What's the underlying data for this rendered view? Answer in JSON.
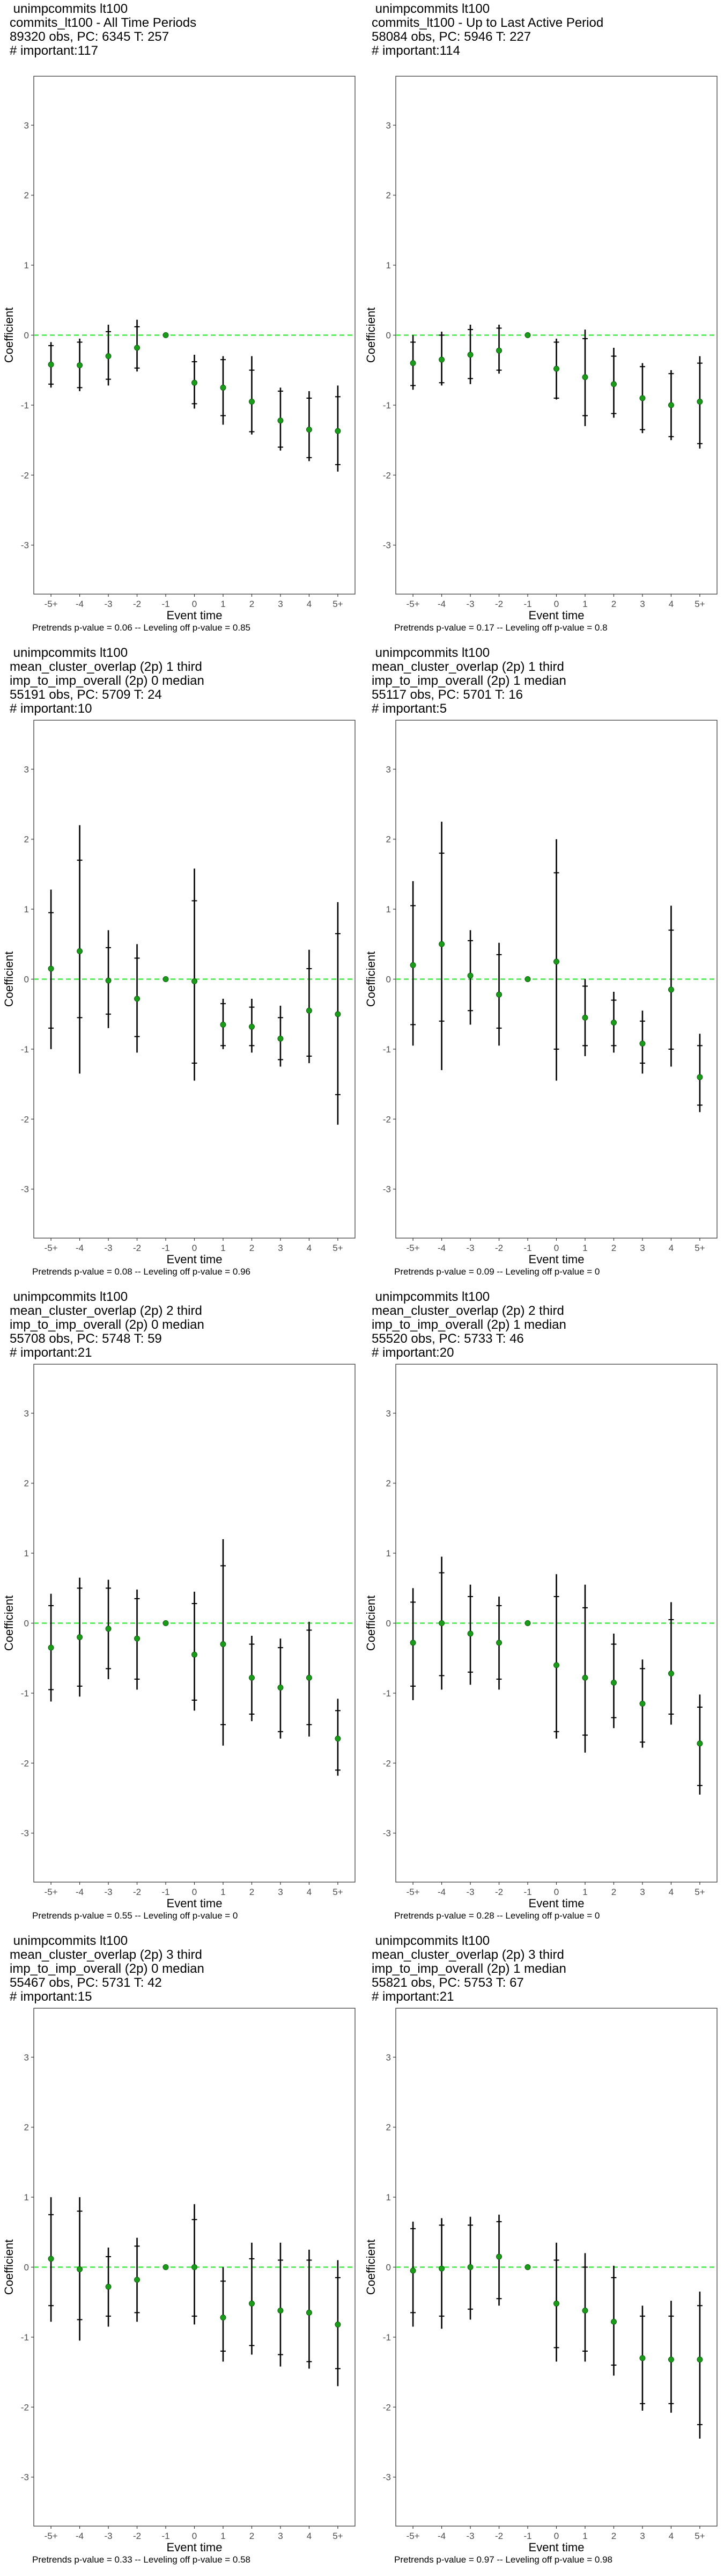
{
  "colors": {
    "estimate_point": "#1a9c1a",
    "zero_line": "#33e533",
    "error_bar": "#000000",
    "panel_border": "#333333",
    "tick_text": "#4d4d4d"
  },
  "chart_data": [
    {
      "type": "scatter",
      "title_lines": [
        " unimpcommits lt100",
        "commits_lt100 - All Time Periods",
        "89320 obs, PC: 6345 T: 257",
        "# important:117"
      ],
      "footnote": "Pretrends p-value = 0.06 -- Leveling off p-value = 0.85",
      "xlabel": "Event time",
      "ylabel": "Coefficient",
      "ylim": [
        -3.7,
        3.7
      ],
      "y_ticks": [
        -3,
        -2,
        -1,
        0,
        1,
        2,
        3
      ],
      "x": [
        "-5+",
        "-4",
        "-3",
        "-2",
        "-1",
        "0",
        "1",
        "2",
        "3",
        "4",
        "5+"
      ],
      "estimate": [
        -0.42,
        -0.43,
        -0.3,
        -0.18,
        0.0,
        -0.68,
        -0.75,
        -0.95,
        -1.22,
        -1.35,
        -1.37
      ],
      "ci_low": [
        -0.75,
        -0.8,
        -0.72,
        -0.52,
        0.0,
        -1.05,
        -1.28,
        -1.42,
        -1.65,
        -1.8,
        -1.95
      ],
      "ci_high": [
        -0.1,
        -0.05,
        0.15,
        0.22,
        0.0,
        -0.28,
        -0.3,
        -0.3,
        -0.75,
        -0.8,
        -0.72
      ],
      "inner_low": [
        -0.7,
        -0.75,
        -0.63,
        -0.47,
        0.0,
        -0.98,
        -1.15,
        -1.38,
        -1.6,
        -1.75,
        -1.85
      ],
      "inner_high": [
        -0.15,
        -0.1,
        0.05,
        0.12,
        0.0,
        -0.38,
        -0.35,
        -0.5,
        -0.8,
        -0.9,
        -0.88
      ],
      "legend": "none",
      "grid": false
    },
    {
      "type": "scatter",
      "title_lines": [
        " unimpcommits lt100",
        "commits_lt100 - Up to Last Active Period",
        "58084 obs, PC: 5946 T: 227",
        "# important:114"
      ],
      "footnote": "Pretrends p-value = 0.17 -- Leveling off p-value = 0.8",
      "xlabel": "Event time",
      "ylabel": "Coefficient",
      "ylim": [
        -3.7,
        3.7
      ],
      "y_ticks": [
        -3,
        -2,
        -1,
        0,
        1,
        2,
        3
      ],
      "x": [
        "-5+",
        "-4",
        "-3",
        "-2",
        "-1",
        "0",
        "1",
        "2",
        "3",
        "4",
        "5+"
      ],
      "estimate": [
        -0.4,
        -0.35,
        -0.28,
        -0.22,
        0.0,
        -0.48,
        -0.6,
        -0.7,
        -0.9,
        -1.0,
        -0.95
      ],
      "ci_low": [
        -0.78,
        -0.72,
        -0.7,
        -0.55,
        0.0,
        -0.92,
        -1.3,
        -1.18,
        -1.4,
        -1.5,
        -1.62
      ],
      "ci_high": [
        0.0,
        0.05,
        0.15,
        0.15,
        0.0,
        -0.05,
        0.08,
        -0.18,
        -0.4,
        -0.5,
        -0.3
      ],
      "inner_low": [
        -0.72,
        -0.68,
        -0.62,
        -0.5,
        0.0,
        -0.9,
        -1.15,
        -1.12,
        -1.35,
        -1.45,
        -1.55
      ],
      "inner_high": [
        -0.1,
        0.0,
        0.08,
        0.1,
        0.0,
        -0.1,
        -0.05,
        -0.3,
        -0.45,
        -0.55,
        -0.4
      ],
      "legend": "none",
      "grid": false
    },
    {
      "type": "scatter",
      "title_lines": [
        " unimpcommits lt100",
        "mean_cluster_overlap (2p) 1 third",
        "imp_to_imp_overall (2p) 0 median",
        "55191 obs, PC: 5709 T: 24",
        "# important:10"
      ],
      "footnote": "Pretrends p-value = 0.08 -- Leveling off p-value = 0.96",
      "xlabel": "Event time",
      "ylabel": "Coefficient",
      "ylim": [
        -3.7,
        3.7
      ],
      "y_ticks": [
        -3,
        -2,
        -1,
        0,
        1,
        2,
        3
      ],
      "x": [
        "-5+",
        "-4",
        "-3",
        "-2",
        "-1",
        "0",
        "1",
        "2",
        "3",
        "4",
        "5+"
      ],
      "estimate": [
        0.15,
        0.4,
        -0.02,
        -0.28,
        0.0,
        -0.03,
        -0.65,
        -0.68,
        -0.85,
        -0.45,
        -0.5
      ],
      "ci_low": [
        -1.0,
        -1.35,
        -0.7,
        -1.05,
        0.0,
        -1.45,
        -1.0,
        -1.05,
        -1.25,
        -1.2,
        -2.08
      ],
      "ci_high": [
        1.28,
        2.2,
        0.7,
        0.5,
        0.0,
        1.58,
        -0.28,
        -0.28,
        -0.38,
        0.42,
        1.1
      ],
      "inner_low": [
        -0.7,
        -0.55,
        -0.5,
        -0.82,
        0.0,
        -1.2,
        -0.95,
        -0.95,
        -1.15,
        -1.1,
        -1.65
      ],
      "inner_high": [
        0.95,
        1.7,
        0.45,
        0.3,
        0.0,
        1.12,
        -0.35,
        -0.4,
        -0.55,
        0.15,
        0.65
      ],
      "legend": "none",
      "grid": false
    },
    {
      "type": "scatter",
      "title_lines": [
        " unimpcommits lt100",
        "mean_cluster_overlap (2p) 1 third",
        "imp_to_imp_overall (2p) 1 median",
        "55117 obs, PC: 5701 T: 16",
        "# important:5"
      ],
      "footnote": "Pretrends p-value = 0.09 -- Leveling off p-value = 0",
      "xlabel": "Event time",
      "ylabel": "Coefficient",
      "ylim": [
        -3.7,
        3.7
      ],
      "y_ticks": [
        -3,
        -2,
        -1,
        0,
        1,
        2,
        3
      ],
      "x": [
        "-5+",
        "-4",
        "-3",
        "-2",
        "-1",
        "0",
        "1",
        "2",
        "3",
        "4",
        "5+"
      ],
      "estimate": [
        0.2,
        0.5,
        0.05,
        -0.22,
        0.0,
        0.25,
        -0.55,
        -0.62,
        -0.92,
        -0.15,
        -1.4
      ],
      "ci_low": [
        -0.95,
        -1.3,
        -0.65,
        -0.95,
        0.0,
        -1.45,
        -1.1,
        -1.05,
        -1.35,
        -1.25,
        -1.9
      ],
      "ci_high": [
        1.4,
        2.25,
        0.7,
        0.52,
        0.0,
        2.0,
        0.0,
        -0.18,
        -0.45,
        1.05,
        -0.78
      ],
      "inner_low": [
        -0.65,
        -0.6,
        -0.45,
        -0.7,
        0.0,
        -1.0,
        -0.95,
        -0.95,
        -1.2,
        -1.0,
        -1.8
      ],
      "inner_high": [
        1.05,
        1.8,
        0.55,
        0.35,
        0.0,
        1.52,
        -0.1,
        -0.3,
        -0.6,
        0.7,
        -0.95
      ],
      "legend": "none",
      "grid": false
    },
    {
      "type": "scatter",
      "title_lines": [
        " unimpcommits lt100",
        "mean_cluster_overlap (2p) 2 third",
        "imp_to_imp_overall (2p) 0 median",
        "55708 obs, PC: 5748 T: 59",
        "# important:21"
      ],
      "footnote": "Pretrends p-value = 0.55 -- Leveling off p-value = 0",
      "xlabel": "Event time",
      "ylabel": "Coefficient",
      "ylim": [
        -3.7,
        3.7
      ],
      "y_ticks": [
        -3,
        -2,
        -1,
        0,
        1,
        2,
        3
      ],
      "x": [
        "-5+",
        "-4",
        "-3",
        "-2",
        "-1",
        "0",
        "1",
        "2",
        "3",
        "4",
        "5+"
      ],
      "estimate": [
        -0.35,
        -0.2,
        -0.08,
        -0.22,
        0.0,
        -0.45,
        -0.3,
        -0.78,
        -0.92,
        -0.78,
        -1.65
      ],
      "ci_low": [
        -1.12,
        -1.05,
        -0.8,
        -0.95,
        0.0,
        -1.25,
        -1.75,
        -1.4,
        -1.65,
        -1.62,
        -2.18
      ],
      "ci_high": [
        0.42,
        0.65,
        0.62,
        0.48,
        0.0,
        0.45,
        1.2,
        -0.18,
        -0.22,
        0.02,
        -1.08
      ],
      "inner_low": [
        -0.95,
        -0.9,
        -0.65,
        -0.8,
        0.0,
        -1.1,
        -1.45,
        -1.3,
        -1.55,
        -1.45,
        -2.1
      ],
      "inner_high": [
        0.25,
        0.5,
        0.5,
        0.35,
        0.0,
        0.28,
        0.82,
        -0.3,
        -0.35,
        -0.1,
        -1.25
      ],
      "legend": "none",
      "grid": false
    },
    {
      "type": "scatter",
      "title_lines": [
        " unimpcommits lt100",
        "mean_cluster_overlap (2p) 2 third",
        "imp_to_imp_overall (2p) 1 median",
        "55520 obs, PC: 5733 T: 46",
        "# important:20"
      ],
      "footnote": "Pretrends p-value = 0.28 -- Leveling off p-value = 0",
      "xlabel": "Event time",
      "ylabel": "Coefficient",
      "ylim": [
        -3.7,
        3.7
      ],
      "y_ticks": [
        -3,
        -2,
        -1,
        0,
        1,
        2,
        3
      ],
      "x": [
        "-5+",
        "-4",
        "-3",
        "-2",
        "-1",
        "0",
        "1",
        "2",
        "3",
        "4",
        "5+"
      ],
      "estimate": [
        -0.28,
        0.0,
        -0.15,
        -0.28,
        0.0,
        -0.6,
        -0.78,
        -0.85,
        -1.15,
        -0.72,
        -1.72
      ],
      "ci_low": [
        -1.1,
        -0.95,
        -0.88,
        -0.95,
        0.0,
        -1.65,
        -1.85,
        -1.5,
        -1.78,
        -1.45,
        -2.45
      ],
      "ci_high": [
        0.5,
        0.95,
        0.55,
        0.38,
        0.0,
        0.7,
        0.55,
        -0.15,
        -0.52,
        0.3,
        -1.02
      ],
      "inner_low": [
        -0.9,
        -0.75,
        -0.7,
        -0.8,
        0.0,
        -1.55,
        -1.6,
        -1.35,
        -1.7,
        -1.3,
        -2.32
      ],
      "inner_high": [
        0.3,
        0.72,
        0.38,
        0.25,
        0.0,
        0.38,
        0.22,
        -0.3,
        -0.65,
        0.05,
        -1.2
      ],
      "legend": "none",
      "grid": false
    },
    {
      "type": "scatter",
      "title_lines": [
        " unimpcommits lt100",
        "mean_cluster_overlap (2p) 3 third",
        "imp_to_imp_overall (2p) 0 median",
        "55467 obs, PC: 5731 T: 42",
        "# important:15"
      ],
      "footnote": "Pretrends p-value = 0.33 -- Leveling off p-value = 0.58",
      "xlabel": "Event time",
      "ylabel": "Coefficient",
      "ylim": [
        -3.7,
        3.7
      ],
      "y_ticks": [
        -3,
        -2,
        -1,
        0,
        1,
        2,
        3
      ],
      "x": [
        "-5+",
        "-4",
        "-3",
        "-2",
        "-1",
        "0",
        "1",
        "2",
        "3",
        "4",
        "5+"
      ],
      "estimate": [
        0.12,
        -0.03,
        -0.28,
        -0.18,
        0.0,
        0.0,
        -0.72,
        -0.52,
        -0.62,
        -0.65,
        -0.82
      ],
      "ci_low": [
        -0.78,
        -1.05,
        -0.85,
        -0.78,
        0.0,
        -0.82,
        -1.35,
        -1.25,
        -1.42,
        -1.45,
        -1.7
      ],
      "ci_high": [
        1.0,
        1.0,
        0.28,
        0.42,
        0.0,
        0.9,
        0.0,
        0.35,
        0.35,
        0.25,
        0.1
      ],
      "inner_low": [
        -0.55,
        -0.75,
        -0.7,
        -0.65,
        0.0,
        -0.7,
        -1.2,
        -1.12,
        -1.25,
        -1.35,
        -1.45
      ],
      "inner_high": [
        0.75,
        0.8,
        0.15,
        0.3,
        0.0,
        0.68,
        -0.2,
        0.12,
        0.1,
        0.1,
        -0.15
      ],
      "legend": "none",
      "grid": false
    },
    {
      "type": "scatter",
      "title_lines": [
        " unimpcommits lt100",
        "mean_cluster_overlap (2p) 3 third",
        "imp_to_imp_overall (2p) 1 median",
        "55821 obs, PC: 5753 T: 67",
        "# important:21"
      ],
      "footnote": "Pretrends p-value = 0.97 -- Leveling off p-value = 0.98",
      "xlabel": "Event time",
      "ylabel": "Coefficient",
      "ylim": [
        -3.7,
        3.7
      ],
      "y_ticks": [
        -3,
        -2,
        -1,
        0,
        1,
        2,
        3
      ],
      "x": [
        "-5+",
        "-4",
        "-3",
        "-2",
        "-1",
        "0",
        "1",
        "2",
        "3",
        "4",
        "5+"
      ],
      "estimate": [
        -0.05,
        -0.02,
        0.0,
        0.15,
        0.0,
        -0.52,
        -0.62,
        -0.78,
        -1.3,
        -1.32,
        -1.32
      ],
      "ci_low": [
        -0.85,
        -0.88,
        -0.75,
        -0.55,
        0.0,
        -1.35,
        -1.35,
        -1.55,
        -2.05,
        -2.08,
        -2.45
      ],
      "ci_high": [
        0.65,
        0.7,
        0.72,
        0.75,
        0.0,
        0.35,
        0.2,
        0.02,
        -0.55,
        -0.48,
        -0.35
      ],
      "inner_low": [
        -0.65,
        -0.7,
        -0.6,
        -0.45,
        0.0,
        -1.15,
        -1.2,
        -1.4,
        -1.95,
        -1.95,
        -2.25
      ],
      "inner_high": [
        0.55,
        0.6,
        0.6,
        0.65,
        0.0,
        0.1,
        0.0,
        -0.15,
        -0.7,
        -0.7,
        -0.55
      ],
      "legend": "none",
      "grid": false
    }
  ]
}
